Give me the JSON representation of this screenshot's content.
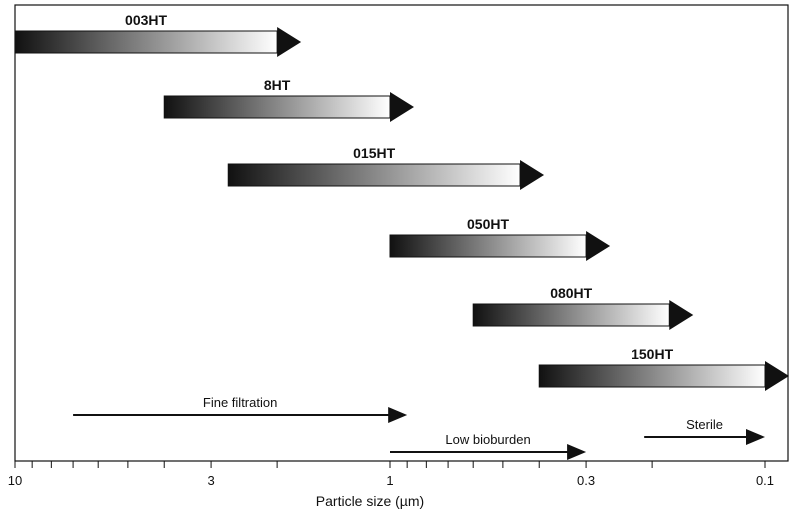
{
  "chart_data": {
    "type": "bar",
    "subtype": "horizontal range arrows on reversed log axis",
    "xlabel": "Particle size (µm)",
    "x_scale": "log",
    "x_reversed": true,
    "xlim": [
      10,
      0.1
    ],
    "x_ticks": [
      10,
      3,
      1,
      0.3,
      0.1
    ],
    "x_tick_labels": [
      "10",
      "3",
      "1",
      "0.3",
      "0.1"
    ],
    "series": [
      {
        "name": "003HT",
        "from": 10,
        "to": 2.0
      },
      {
        "name": "8HT",
        "from": 4.0,
        "to": 1.0
      },
      {
        "name": "015HT",
        "from": 2.7,
        "to": 0.45
      },
      {
        "name": "050HT",
        "from": 1.0,
        "to": 0.3
      },
      {
        "name": "080HT",
        "from": 0.6,
        "to": 0.18
      },
      {
        "name": "150HT",
        "from": 0.4,
        "to": 0.1
      }
    ],
    "applications": [
      {
        "label": "Fine filtration",
        "from": 7.0,
        "to": 0.9
      },
      {
        "label": "Low bioburden",
        "from": 1.0,
        "to": 0.3
      },
      {
        "label": "Sterile",
        "from": 0.21,
        "to": 0.1
      }
    ],
    "colors": {
      "gradient_start": "#111111",
      "gradient_end": "#ffffff",
      "stroke": "#111111"
    }
  }
}
